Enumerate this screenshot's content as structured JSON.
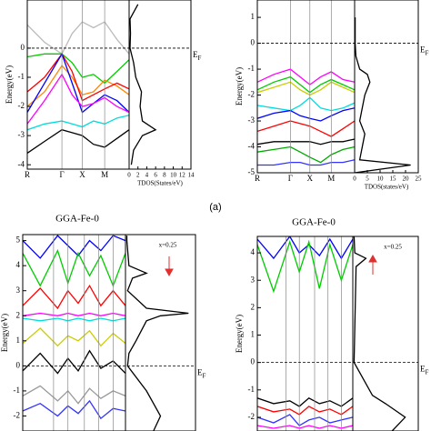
{
  "caption": "(a)",
  "chart_data": [
    {
      "type": "line",
      "ylabel": "Energy(eV)",
      "ylim": [
        -4.15,
        1.65
      ],
      "yticks": [
        -4,
        -3,
        -2,
        -1,
        0
      ],
      "xlim": [
        0,
        1
      ],
      "xticks": [
        {
          "value": 0,
          "label": "R"
        },
        {
          "value": 0.34,
          "label": "Γ"
        },
        {
          "value": 0.54,
          "label": "X"
        },
        {
          "value": 0.76,
          "label": "M"
        }
      ],
      "fermi": {
        "text": "E",
        "sub": "F"
      },
      "x": [
        0,
        0.17,
        0.34,
        0.44,
        0.54,
        0.65,
        0.76,
        0.88,
        1
      ],
      "series": [
        {
          "color": "#bbbbbb",
          "values": [
            0.8,
            0.2,
            -0.2,
            0.5,
            0.9,
            0.7,
            0.9,
            0.3,
            -0.2
          ]
        },
        {
          "color": "#00cc00",
          "values": [
            -0.3,
            -0.2,
            -0.2,
            -0.5,
            -1.0,
            -0.9,
            -1.2,
            -0.8,
            -0.4
          ]
        },
        {
          "color": "#ff8800",
          "values": [
            -2.0,
            -1.5,
            -0.6,
            -1.0,
            -1.6,
            -1.5,
            -1.1,
            -1.3,
            -1.6
          ]
        },
        {
          "color": "#ff0000",
          "values": [
            -1.5,
            -1.0,
            -0.2,
            -0.8,
            -1.8,
            -1.6,
            -1.4,
            -1.2,
            -1.4
          ]
        },
        {
          "color": "#0000ff",
          "values": [
            -2.2,
            -1.2,
            -0.2,
            -1.2,
            -2.2,
            -1.9,
            -1.6,
            -1.8,
            -2.2
          ]
        },
        {
          "color": "#ff00ff",
          "values": [
            -2.6,
            -1.8,
            -0.9,
            -1.6,
            -2.0,
            -1.9,
            -1.7,
            -2.0,
            -2.2
          ]
        },
        {
          "color": "#00dddd",
          "values": [
            -2.8,
            -2.6,
            -2.5,
            -2.6,
            -2.7,
            -2.5,
            -2.6,
            -2.4,
            -2.3
          ]
        },
        {
          "color": "#000000",
          "values": [
            -3.6,
            -3.2,
            -2.8,
            -2.9,
            -3.0,
            -3.3,
            -3.4,
            -3.1,
            -2.8
          ]
        }
      ],
      "dos": {
        "xlabel": "TDOS(States/eV)",
        "xlim": [
          0,
          14
        ],
        "xticks": [
          0,
          2,
          4,
          6,
          8,
          10,
          12,
          14
        ],
        "energies": [
          -4,
          -3.5,
          -3,
          -2.8,
          -2.5,
          -2,
          -1.5,
          -1,
          -0.5,
          0,
          0.5,
          1,
          1.5
        ],
        "values": [
          0.5,
          1,
          3,
          6,
          3,
          2.5,
          2.8,
          1.5,
          1,
          0.2,
          0.3,
          0.2,
          2
        ]
      }
    },
    {
      "type": "line",
      "ylabel": "Energy(eV)",
      "ylim": [
        -5,
        1.67
      ],
      "yticks": [
        -5,
        -4,
        -3,
        -2,
        -1,
        0,
        1
      ],
      "xlim": [
        0,
        1
      ],
      "xticks": [
        {
          "value": 0,
          "label": "R"
        },
        {
          "value": 0.34,
          "label": "Γ"
        },
        {
          "value": 0.54,
          "label": "X"
        },
        {
          "value": 0.76,
          "label": "M"
        }
      ],
      "fermi": {
        "text": "E",
        "sub": "F"
      },
      "x": [
        0,
        0.17,
        0.34,
        0.44,
        0.54,
        0.65,
        0.76,
        0.88,
        1
      ],
      "series": [
        {
          "color": "#ff00ff",
          "values": [
            -1.5,
            -1.2,
            -1.0,
            -1.3,
            -1.6,
            -1.3,
            -1.1,
            -1.4,
            -1.5
          ]
        },
        {
          "color": "#00cc00",
          "values": [
            -1.8,
            -1.5,
            -1.3,
            -1.6,
            -1.9,
            -1.6,
            -1.4,
            -1.6,
            -1.8
          ]
        },
        {
          "color": "#cccc00",
          "values": [
            -1.9,
            -1.7,
            -1.5,
            -1.8,
            -2.0,
            -1.8,
            -1.5,
            -1.7,
            -1.9
          ]
        },
        {
          "color": "#00dddd",
          "values": [
            -2.4,
            -2.5,
            -2.6,
            -2.4,
            -2.1,
            -2.5,
            -2.6,
            -2.5,
            -2.3
          ]
        },
        {
          "color": "#0000ff",
          "values": [
            -2.9,
            -2.7,
            -2.6,
            -2.8,
            -2.9,
            -3.0,
            -2.8,
            -2.6,
            -2.5
          ]
        },
        {
          "color": "#ff0000",
          "values": [
            -3.4,
            -3.2,
            -3.0,
            -3.1,
            -3.2,
            -3.4,
            -3.6,
            -3.3,
            -3.0
          ]
        },
        {
          "color": "#000000",
          "values": [
            -3.9,
            -3.8,
            -3.8,
            -3.8,
            -3.8,
            -3.9,
            -3.8,
            -3.8,
            -3.7
          ]
        },
        {
          "color": "#00aa00",
          "values": [
            -4.2,
            -4.1,
            -4.0,
            -4.2,
            -4.4,
            -4.6,
            -4.3,
            -4.1,
            -4.0
          ]
        },
        {
          "color": "#3333ff",
          "values": [
            -4.7,
            -4.7,
            -4.6,
            -4.6,
            -4.7,
            -4.7,
            -4.6,
            -4.6,
            -4.5
          ]
        }
      ],
      "dos": {
        "xlabel": "TDOS(states/eV)",
        "xlim": [
          0,
          25
        ],
        "xticks": [
          0,
          5,
          10,
          15,
          20,
          25
        ],
        "energies": [
          -5,
          -4.7,
          -4.5,
          -4,
          -3.5,
          -3,
          -2.5,
          -2,
          -1.5,
          -1.2,
          -1,
          -0.5,
          0,
          1
        ],
        "values": [
          0,
          22,
          2,
          3,
          4,
          2,
          3,
          4,
          6,
          5,
          2,
          0.5,
          0.2,
          0.2
        ]
      }
    },
    {
      "type": "line",
      "title": "GGA-Fe-0",
      "ylabel": "Energy(eV)",
      "ylim": [
        -2.6,
        5.24
      ],
      "yticks": [
        -2,
        -1,
        0,
        1,
        2,
        3,
        4,
        5
      ],
      "xlim": [
        0,
        1
      ],
      "annotation": "x=0.25",
      "fermi": {
        "text": "E",
        "sub": "F"
      },
      "x": [
        0,
        0.17,
        0.34,
        0.44,
        0.54,
        0.65,
        0.76,
        0.88,
        1
      ],
      "series": [
        {
          "color": "#0000ff",
          "values": [
            5.0,
            4.3,
            5.2,
            4.8,
            4.4,
            5.0,
            4.6,
            5.2,
            5.0
          ]
        },
        {
          "color": "#00cc00",
          "values": [
            4.5,
            3.2,
            4.6,
            3.3,
            4.5,
            3.6,
            4.4,
            3.2,
            4.5
          ]
        },
        {
          "color": "#ff0000",
          "values": [
            2.4,
            3.1,
            2.3,
            3.0,
            2.5,
            3.2,
            2.4,
            3.0,
            2.4
          ]
        },
        {
          "color": "#ff00ff",
          "values": [
            2.0,
            2.1,
            2.0,
            2.1,
            2.0,
            2.1,
            2.0,
            2.1,
            2.0
          ]
        },
        {
          "color": "#00dddd",
          "values": [
            1.9,
            1.8,
            1.9,
            1.8,
            1.9,
            1.8,
            1.9,
            1.8,
            1.9
          ]
        },
        {
          "color": "#cccc00",
          "values": [
            0.9,
            1.5,
            0.8,
            1.2,
            1.0,
            1.4,
            0.8,
            1.3,
            0.9
          ]
        },
        {
          "color": "#000000",
          "values": [
            -0.2,
            0.5,
            -0.3,
            0.3,
            -0.2,
            0.6,
            -0.1,
            0.2,
            -0.3
          ]
        },
        {
          "color": "#999999",
          "values": [
            -1.2,
            -0.8,
            -1.4,
            -1.0,
            -1.5,
            -0.9,
            -1.3,
            -1.0,
            -1.2
          ]
        },
        {
          "color": "#3333ff",
          "values": [
            -1.8,
            -1.5,
            -2.0,
            -1.6,
            -1.9,
            -1.4,
            -2.1,
            -1.7,
            -1.8
          ]
        }
      ],
      "dos": {
        "xlim": [
          0,
          10
        ],
        "energies": [
          -2.6,
          -2,
          -1,
          0,
          0.5,
          1,
          1.8,
          2,
          2.1,
          2.3,
          3,
          3.5,
          3.7,
          4,
          5,
          5.2
        ],
        "values": [
          4,
          5,
          3,
          0.3,
          0.5,
          1.5,
          3,
          5,
          9,
          3,
          0.3,
          1,
          3,
          0.5,
          0.2,
          0.2
        ]
      }
    },
    {
      "type": "line",
      "title": "GGA-Fe-0",
      "ylabel": "Energy(eV)",
      "ylim": [
        -2.5,
        4.6
      ],
      "yticks": [
        -2,
        -1,
        0,
        1,
        2,
        3,
        4
      ],
      "xlim": [
        0,
        1
      ],
      "annotation": "x=0.25",
      "fermi": {
        "text": "E",
        "sub": "F"
      },
      "x": [
        0,
        0.17,
        0.34,
        0.44,
        0.54,
        0.65,
        0.76,
        0.88,
        1
      ],
      "series": [
        {
          "color": "#0000ff",
          "values": [
            4.5,
            3.8,
            4.6,
            4.0,
            4.3,
            3.9,
            4.5,
            3.8,
            4.5
          ]
        },
        {
          "color": "#00cc00",
          "values": [
            4.3,
            2.6,
            4.4,
            3.3,
            4.4,
            2.7,
            4.3,
            3.0,
            4.3
          ]
        },
        {
          "color": "#000000",
          "values": [
            -1.3,
            -1.5,
            -1.4,
            -1.6,
            -1.3,
            -1.5,
            -1.4,
            -1.6,
            -1.3
          ]
        },
        {
          "color": "#ff0000",
          "values": [
            -1.6,
            -1.8,
            -1.7,
            -1.9,
            -1.6,
            -1.8,
            -1.7,
            -1.9,
            -1.6
          ]
        },
        {
          "color": "#3333ff",
          "values": [
            -2.0,
            -2.2,
            -1.9,
            -2.3,
            -2.1,
            -2.0,
            -2.2,
            -2.1,
            -2.0
          ]
        },
        {
          "color": "#ff00ff",
          "values": [
            -2.3,
            -2.4,
            -2.3,
            -2.4,
            -2.3,
            -2.4,
            -2.3,
            -2.4,
            -2.3
          ]
        }
      ],
      "dos": {
        "xlim": [
          0,
          10
        ],
        "energies": [
          -2.5,
          -2,
          -1.5,
          -1.2,
          0,
          3.5,
          3.8,
          4,
          4.6
        ],
        "values": [
          6,
          8,
          5,
          3,
          0.2,
          0.5,
          2,
          0.3,
          0.2
        ]
      }
    }
  ]
}
